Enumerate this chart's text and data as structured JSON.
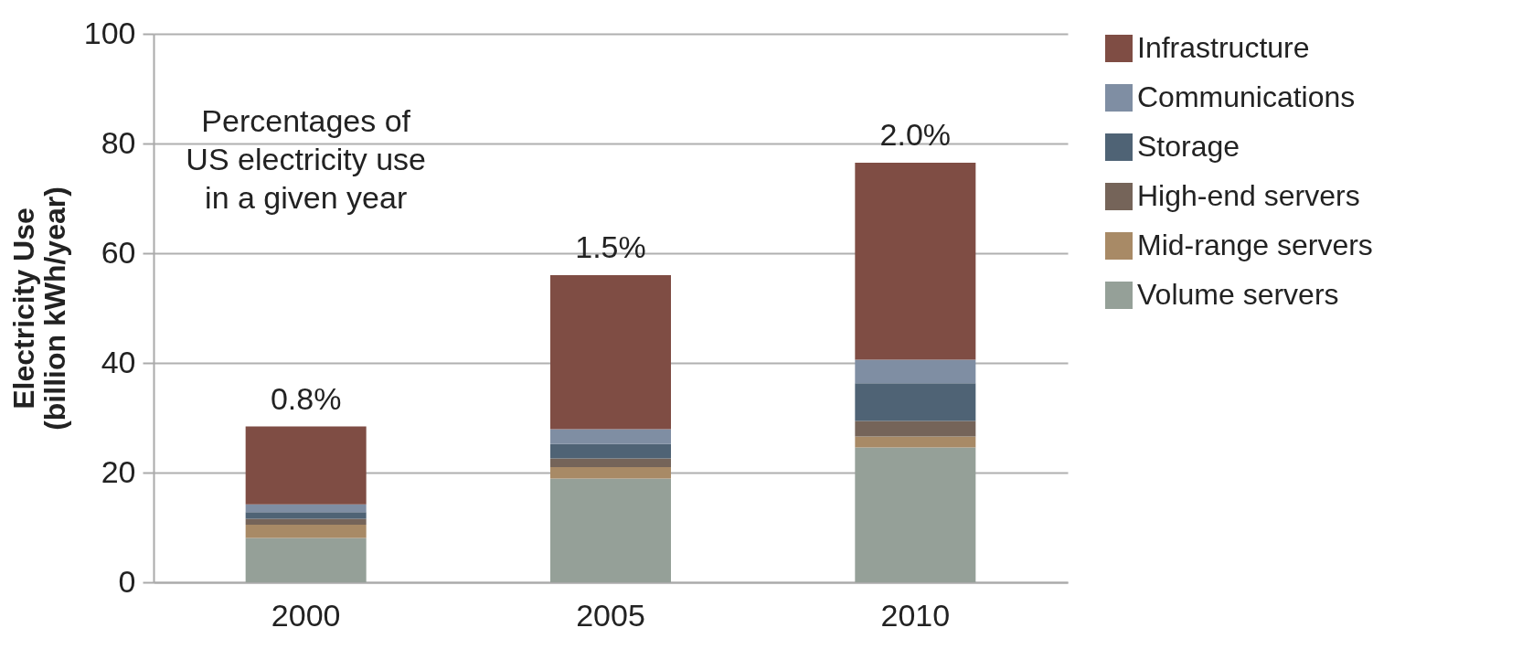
{
  "chart_data": {
    "type": "bar",
    "stacked": true,
    "categories": [
      "2000",
      "2005",
      "2010"
    ],
    "ylabel": "Electricity Use\n(billion kWh/year)",
    "series": [
      {
        "name": "Volume servers",
        "color": "#95a098",
        "values": [
          8.1,
          18.9,
          24.6
        ]
      },
      {
        "name": "Mid-range servers",
        "color": "#a88a66",
        "values": [
          2.4,
          2.1,
          2.0
        ]
      },
      {
        "name": "High-end servers",
        "color": "#756459",
        "values": [
          1.1,
          1.6,
          2.8
        ]
      },
      {
        "name": "Storage",
        "color": "#4f6375",
        "values": [
          1.2,
          2.6,
          6.9
        ]
      },
      {
        "name": "Communications",
        "color": "#7f8ea3",
        "values": [
          1.4,
          2.7,
          4.3
        ]
      },
      {
        "name": "Infrastructure",
        "color": "#7f4d44",
        "values": [
          14.2,
          28.1,
          35.9
        ]
      }
    ],
    "ylim": [
      0,
      100
    ],
    "yticks": [
      0,
      20,
      40,
      60,
      80,
      100
    ],
    "grid": "y",
    "legend": "right",
    "annotations": [
      "Percentages of\nUS electricity use\nin a given year",
      {
        "text": "0.8%",
        "x": "2000",
        "y": 28.4
      },
      {
        "text": "1.5%",
        "x": "2005",
        "y": 56.0
      },
      {
        "text": "2.0%",
        "x": "2010",
        "y": 76.5
      }
    ]
  }
}
